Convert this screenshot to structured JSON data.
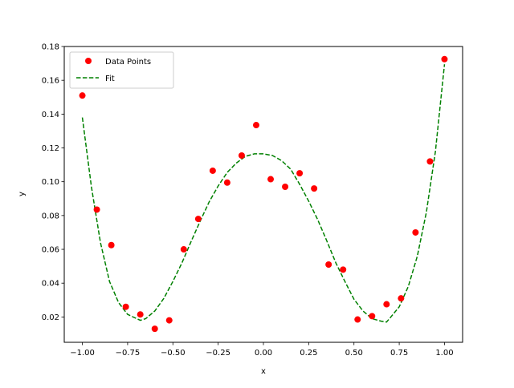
{
  "chart_data": {
    "type": "scatter",
    "xlabel": "x",
    "ylabel": "y",
    "xlim": [
      -1.1,
      1.1
    ],
    "ylim": [
      0.005,
      0.18
    ],
    "x_ticks": [
      -1.0,
      -0.75,
      -0.5,
      -0.25,
      0.0,
      0.25,
      0.5,
      0.75,
      1.0
    ],
    "x_tick_labels": [
      "−1.00",
      "−0.75",
      "−0.50",
      "−0.25",
      "0.00",
      "0.25",
      "0.50",
      "0.75",
      "1.00"
    ],
    "y_ticks": [
      0.02,
      0.04,
      0.06,
      0.08,
      0.1,
      0.12,
      0.14,
      0.16,
      0.18
    ],
    "y_tick_labels": [
      "0.02",
      "0.04",
      "0.06",
      "0.08",
      "0.10",
      "0.12",
      "0.14",
      "0.16",
      "0.18"
    ],
    "grid": false,
    "legend_position": "upper-left",
    "series": [
      {
        "name": "Data Points",
        "kind": "markers",
        "color": "#ff0000",
        "x": [
          -1.0,
          -0.92,
          -0.84,
          -0.76,
          -0.68,
          -0.6,
          -0.52,
          -0.44,
          -0.36,
          -0.28,
          -0.2,
          -0.12,
          -0.04,
          0.04,
          0.12,
          0.2,
          0.28,
          0.36,
          0.44,
          0.52,
          0.6,
          0.68,
          0.76,
          0.84,
          0.92,
          1.0
        ],
        "y": [
          0.151,
          0.0835,
          0.0625,
          0.026,
          0.0215,
          0.013,
          0.018,
          0.06,
          0.078,
          0.1065,
          0.0995,
          0.1155,
          0.1335,
          0.1015,
          0.097,
          0.105,
          0.096,
          0.051,
          0.048,
          0.0185,
          0.0205,
          0.0275,
          0.031,
          0.07,
          0.112,
          0.1725
        ]
      },
      {
        "name": "Fit",
        "kind": "dashed-line",
        "color": "#008000",
        "x": [
          -1.0,
          -0.95,
          -0.9,
          -0.85,
          -0.8,
          -0.75,
          -0.7,
          -0.68,
          -0.65,
          -0.6,
          -0.55,
          -0.5,
          -0.45,
          -0.4,
          -0.35,
          -0.3,
          -0.25,
          -0.2,
          -0.15,
          -0.1,
          -0.05,
          0.0,
          0.05,
          0.1,
          0.15,
          0.2,
          0.25,
          0.3,
          0.35,
          0.4,
          0.45,
          0.5,
          0.55,
          0.6,
          0.65,
          0.68,
          0.7,
          0.75,
          0.8,
          0.85,
          0.9,
          0.95,
          1.0
        ],
        "y": [
          0.138,
          0.097,
          0.064,
          0.041,
          0.0285,
          0.0215,
          0.019,
          0.018,
          0.019,
          0.0235,
          0.031,
          0.041,
          0.052,
          0.0645,
          0.0765,
          0.088,
          0.0975,
          0.1055,
          0.111,
          0.115,
          0.1165,
          0.1165,
          0.1155,
          0.1125,
          0.1075,
          0.0985,
          0.0885,
          0.0775,
          0.065,
          0.052,
          0.041,
          0.0305,
          0.0235,
          0.019,
          0.0175,
          0.017,
          0.0195,
          0.026,
          0.038,
          0.056,
          0.082,
          0.118,
          0.1695
        ]
      }
    ]
  }
}
